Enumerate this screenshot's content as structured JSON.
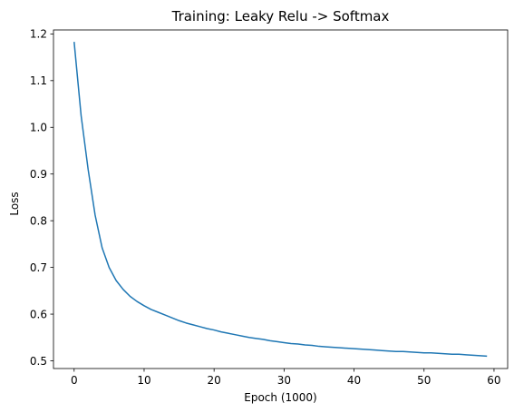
{
  "chart_data": {
    "type": "line",
    "title": "Training: Leaky Relu -> Softmax",
    "xlabel": "Epoch (1000)",
    "ylabel": "Loss",
    "xlim": [
      -2.95,
      61.95
    ],
    "ylim": [
      0.4835,
      1.2085
    ],
    "xticks": [
      0,
      10,
      20,
      30,
      40,
      50,
      60
    ],
    "yticks": [
      0.5,
      0.6,
      0.7,
      0.8,
      0.9,
      1.0,
      1.1,
      1.2
    ],
    "grid": false,
    "legend": "none",
    "series": [
      {
        "color": "#1f77b4",
        "x": [
          0,
          1,
          2,
          3,
          4,
          5,
          6,
          7,
          8,
          9,
          10,
          11,
          12,
          13,
          14,
          15,
          16,
          17,
          18,
          19,
          20,
          21,
          22,
          23,
          24,
          25,
          26,
          27,
          28,
          29,
          30,
          31,
          32,
          33,
          34,
          35,
          36,
          37,
          38,
          39,
          40,
          41,
          42,
          43,
          44,
          45,
          46,
          47,
          48,
          49,
          50,
          51,
          52,
          53,
          54,
          55,
          56,
          57,
          58,
          59
        ],
        "y": [
          1.183,
          1.025,
          0.91,
          0.812,
          0.742,
          0.7,
          0.672,
          0.653,
          0.638,
          0.627,
          0.618,
          0.61,
          0.604,
          0.598,
          0.592,
          0.586,
          0.581,
          0.577,
          0.573,
          0.569,
          0.566,
          0.562,
          0.559,
          0.556,
          0.553,
          0.55,
          0.548,
          0.546,
          0.543,
          0.541,
          0.539,
          0.537,
          0.536,
          0.534,
          0.533,
          0.531,
          0.53,
          0.529,
          0.528,
          0.527,
          0.526,
          0.525,
          0.524,
          0.523,
          0.522,
          0.521,
          0.52,
          0.52,
          0.519,
          0.518,
          0.517,
          0.517,
          0.516,
          0.515,
          0.514,
          0.514,
          0.513,
          0.512,
          0.511,
          0.51
        ]
      }
    ]
  }
}
